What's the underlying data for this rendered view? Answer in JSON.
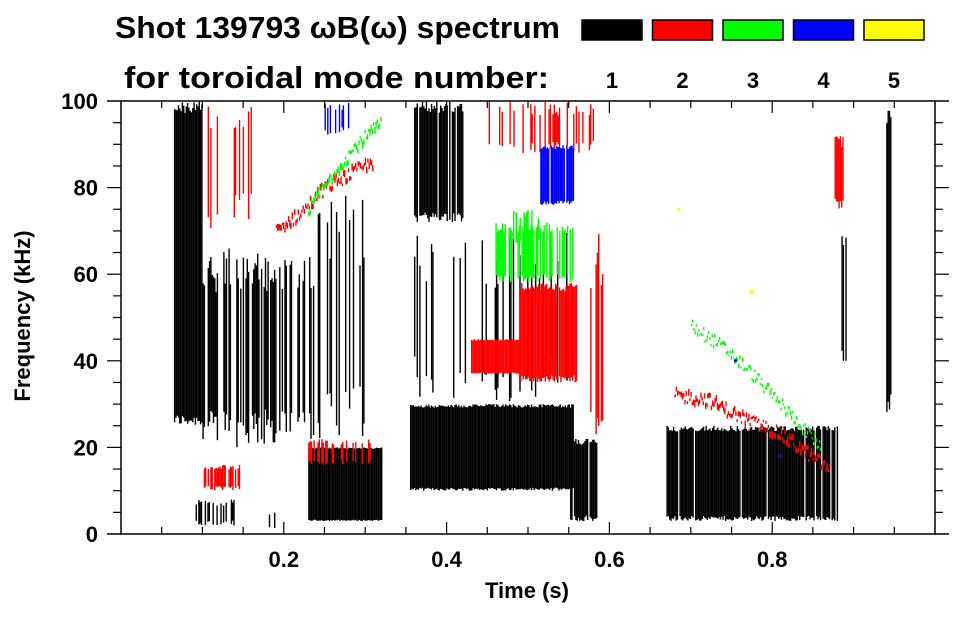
{
  "chart_data": {
    "type": "heatmap",
    "title": "Shot 139793 ωB(ω) spectrum",
    "legend_title": "for toroidal mode number:",
    "legend_placement": "top-right",
    "modes": [
      {
        "label": "1",
        "color": "#000000"
      },
      {
        "label": "2",
        "color": "#ff0000"
      },
      {
        "label": "3",
        "color": "#00ff00"
      },
      {
        "label": "4",
        "color": "#0000ff"
      },
      {
        "label": "5",
        "color": "#ffff00"
      }
    ],
    "xlabel": "Time (s)",
    "ylabel": "Frequency (kHz)",
    "xlim": [
      0.0,
      1.0
    ],
    "ylim": [
      0,
      100
    ],
    "xticks": [
      {
        "v": 0.2,
        "label": "0.2"
      },
      {
        "v": 0.4,
        "label": "0.4"
      },
      {
        "v": 0.6,
        "label": "0.6"
      },
      {
        "v": 0.8,
        "label": "0.8"
      }
    ],
    "yticks": [
      {
        "v": 0,
        "label": "0"
      },
      {
        "v": 20,
        "label": "20"
      },
      {
        "v": 40,
        "label": "40"
      },
      {
        "v": 60,
        "label": "60"
      },
      {
        "v": 80,
        "label": "80"
      },
      {
        "v": 100,
        "label": "100"
      }
    ],
    "x_minor_step": 0.05,
    "y_minor_step": 5,
    "regions": [
      {
        "mode": 1,
        "t": [
          0.065,
          0.1
        ],
        "f": [
          25,
          100
        ],
        "density": 0.9
      },
      {
        "mode": 1,
        "t": [
          0.1,
          0.24
        ],
        "f": [
          20,
          66
        ],
        "density": 0.45
      },
      {
        "mode": 1,
        "t": [
          0.09,
          0.14
        ],
        "f": [
          2,
          8
        ],
        "density": 0.4
      },
      {
        "mode": 1,
        "t": [
          0.18,
          0.19
        ],
        "f": [
          1,
          5
        ],
        "density": 0.6
      },
      {
        "mode": 1,
        "t": [
          0.23,
          0.32
        ],
        "f": [
          3,
          20
        ],
        "density": 0.95
      },
      {
        "mode": 1,
        "t": [
          0.24,
          0.3
        ],
        "f": [
          20,
          80
        ],
        "density": 0.25
      },
      {
        "mode": 1,
        "t": [
          0.355,
          0.555
        ],
        "f": [
          10,
          30
        ],
        "density": 0.9
      },
      {
        "mode": 1,
        "t": [
          0.36,
          0.42
        ],
        "f": [
          72,
          100
        ],
        "density": 0.75
      },
      {
        "mode": 1,
        "t": [
          0.36,
          0.55
        ],
        "f": [
          30,
          70
        ],
        "density": 0.15
      },
      {
        "mode": 1,
        "t": [
          0.55,
          0.585
        ],
        "f": [
          3,
          22
        ],
        "density": 0.8
      },
      {
        "mode": 1,
        "t": [
          0.67,
          0.88
        ],
        "f": [
          3,
          25
        ],
        "density": 0.85
      },
      {
        "mode": 1,
        "t": [
          0.885,
          0.89
        ],
        "f": [
          40,
          70
        ],
        "density": 0.7
      },
      {
        "mode": 1,
        "t": [
          0.94,
          0.946
        ],
        "f": [
          28,
          100
        ],
        "density": 0.8
      },
      {
        "mode": 2,
        "t": [
          0.1,
          0.145
        ],
        "f": [
          10,
          16
        ],
        "density": 0.5
      },
      {
        "mode": 2,
        "t": [
          0.23,
          0.31
        ],
        "f": [
          16,
          22
        ],
        "density": 0.4
      },
      {
        "mode": 2,
        "t": [
          0.43,
          0.49
        ],
        "f": [
          37,
          45
        ],
        "density": 0.9
      },
      {
        "mode": 2,
        "t": [
          0.49,
          0.56
        ],
        "f": [
          35,
          58
        ],
        "density": 0.8
      },
      {
        "mode": 2,
        "t": [
          0.45,
          0.58
        ],
        "f": [
          88,
          100
        ],
        "density": 0.3
      },
      {
        "mode": 2,
        "t": [
          0.57,
          0.6
        ],
        "f": [
          20,
          70
        ],
        "density": 0.25
      },
      {
        "mode": 2,
        "t": [
          0.875,
          0.89
        ],
        "f": [
          75,
          92
        ],
        "density": 0.6
      },
      {
        "mode": 2,
        "t": [
          0.1,
          0.16
        ],
        "f": [
          70,
          100
        ],
        "density": 0.15
      },
      {
        "mode": 3,
        "t": [
          0.46,
          0.555
        ],
        "f": [
          58,
          72
        ],
        "density": 0.6
      },
      {
        "mode": 3,
        "t": [
          0.48,
          0.52
        ],
        "f": [
          66,
          75
        ],
        "density": 0.3
      },
      {
        "mode": 4,
        "t": [
          0.515,
          0.555
        ],
        "f": [
          76,
          90
        ],
        "density": 0.8
      },
      {
        "mode": 4,
        "t": [
          0.25,
          0.28
        ],
        "f": [
          92,
          100
        ],
        "density": 0.3
      }
    ],
    "ridges": [
      {
        "mode": 2,
        "points": [
          [
            0.19,
            70
          ],
          [
            0.22,
            74
          ],
          [
            0.25,
            80
          ],
          [
            0.28,
            83
          ],
          [
            0.31,
            86
          ]
        ],
        "width": 4
      },
      {
        "mode": 3,
        "points": [
          [
            0.23,
            75
          ],
          [
            0.26,
            83
          ],
          [
            0.29,
            90
          ],
          [
            0.32,
            95
          ]
        ],
        "width": 4
      },
      {
        "mode": 2,
        "points": [
          [
            0.68,
            32
          ],
          [
            0.72,
            31
          ],
          [
            0.76,
            27
          ],
          [
            0.8,
            24
          ],
          [
            0.84,
            19
          ],
          [
            0.87,
            15
          ]
        ],
        "width": 4
      },
      {
        "mode": 3,
        "points": [
          [
            0.7,
            48
          ],
          [
            0.74,
            43
          ],
          [
            0.78,
            36
          ],
          [
            0.82,
            28
          ],
          [
            0.86,
            20
          ]
        ],
        "width": 2.5
      }
    ],
    "points": [
      {
        "mode": 5,
        "t": [
          0.775,
          56
        ]
      },
      {
        "mode": 5,
        "t": [
          0.685,
          75
        ]
      },
      {
        "mode": 4,
        "t": [
          0.755,
          40
        ]
      },
      {
        "mode": 4,
        "t": [
          0.81,
          18
        ]
      }
    ]
  }
}
